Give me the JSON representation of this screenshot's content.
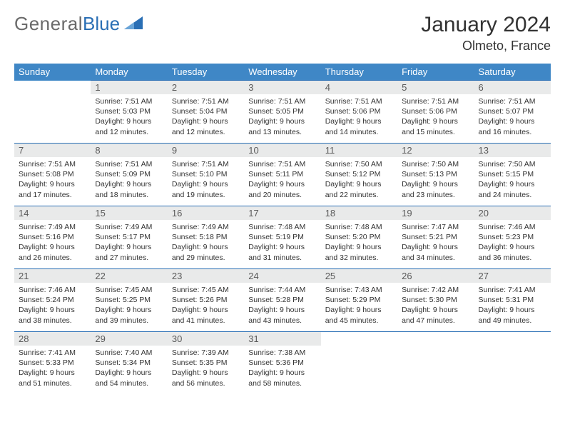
{
  "logo": {
    "part1": "General",
    "part2": "Blue"
  },
  "title": "January 2024",
  "location": "Olmeto, France",
  "weekdays": [
    "Sunday",
    "Monday",
    "Tuesday",
    "Wednesday",
    "Thursday",
    "Friday",
    "Saturday"
  ],
  "colors": {
    "header_bg": "#3f87c6",
    "header_text": "#ffffff",
    "daynum_bg": "#e9eaea",
    "row_border": "#2a6fb5",
    "logo_blue": "#2a6fb5",
    "logo_gray": "#6a6a6a",
    "text": "#333333",
    "page_bg": "#ffffff"
  },
  "fonts": {
    "month_title_pt": 30,
    "location_pt": 18,
    "weekday_pt": 13,
    "daynum_pt": 13,
    "body_pt": 10.5
  },
  "layout": {
    "start_weekday_index": 1,
    "days_in_month": 31,
    "columns": 7,
    "rows": 5
  },
  "days": [
    {
      "n": 1,
      "sunrise": "7:51 AM",
      "sunset": "5:03 PM",
      "daylight": "9 hours and 12 minutes."
    },
    {
      "n": 2,
      "sunrise": "7:51 AM",
      "sunset": "5:04 PM",
      "daylight": "9 hours and 12 minutes."
    },
    {
      "n": 3,
      "sunrise": "7:51 AM",
      "sunset": "5:05 PM",
      "daylight": "9 hours and 13 minutes."
    },
    {
      "n": 4,
      "sunrise": "7:51 AM",
      "sunset": "5:06 PM",
      "daylight": "9 hours and 14 minutes."
    },
    {
      "n": 5,
      "sunrise": "7:51 AM",
      "sunset": "5:06 PM",
      "daylight": "9 hours and 15 minutes."
    },
    {
      "n": 6,
      "sunrise": "7:51 AM",
      "sunset": "5:07 PM",
      "daylight": "9 hours and 16 minutes."
    },
    {
      "n": 7,
      "sunrise": "7:51 AM",
      "sunset": "5:08 PM",
      "daylight": "9 hours and 17 minutes."
    },
    {
      "n": 8,
      "sunrise": "7:51 AM",
      "sunset": "5:09 PM",
      "daylight": "9 hours and 18 minutes."
    },
    {
      "n": 9,
      "sunrise": "7:51 AM",
      "sunset": "5:10 PM",
      "daylight": "9 hours and 19 minutes."
    },
    {
      "n": 10,
      "sunrise": "7:51 AM",
      "sunset": "5:11 PM",
      "daylight": "9 hours and 20 minutes."
    },
    {
      "n": 11,
      "sunrise": "7:50 AM",
      "sunset": "5:12 PM",
      "daylight": "9 hours and 22 minutes."
    },
    {
      "n": 12,
      "sunrise": "7:50 AM",
      "sunset": "5:13 PM",
      "daylight": "9 hours and 23 minutes."
    },
    {
      "n": 13,
      "sunrise": "7:50 AM",
      "sunset": "5:15 PM",
      "daylight": "9 hours and 24 minutes."
    },
    {
      "n": 14,
      "sunrise": "7:49 AM",
      "sunset": "5:16 PM",
      "daylight": "9 hours and 26 minutes."
    },
    {
      "n": 15,
      "sunrise": "7:49 AM",
      "sunset": "5:17 PM",
      "daylight": "9 hours and 27 minutes."
    },
    {
      "n": 16,
      "sunrise": "7:49 AM",
      "sunset": "5:18 PM",
      "daylight": "9 hours and 29 minutes."
    },
    {
      "n": 17,
      "sunrise": "7:48 AM",
      "sunset": "5:19 PM",
      "daylight": "9 hours and 31 minutes."
    },
    {
      "n": 18,
      "sunrise": "7:48 AM",
      "sunset": "5:20 PM",
      "daylight": "9 hours and 32 minutes."
    },
    {
      "n": 19,
      "sunrise": "7:47 AM",
      "sunset": "5:21 PM",
      "daylight": "9 hours and 34 minutes."
    },
    {
      "n": 20,
      "sunrise": "7:46 AM",
      "sunset": "5:23 PM",
      "daylight": "9 hours and 36 minutes."
    },
    {
      "n": 21,
      "sunrise": "7:46 AM",
      "sunset": "5:24 PM",
      "daylight": "9 hours and 38 minutes."
    },
    {
      "n": 22,
      "sunrise": "7:45 AM",
      "sunset": "5:25 PM",
      "daylight": "9 hours and 39 minutes."
    },
    {
      "n": 23,
      "sunrise": "7:45 AM",
      "sunset": "5:26 PM",
      "daylight": "9 hours and 41 minutes."
    },
    {
      "n": 24,
      "sunrise": "7:44 AM",
      "sunset": "5:28 PM",
      "daylight": "9 hours and 43 minutes."
    },
    {
      "n": 25,
      "sunrise": "7:43 AM",
      "sunset": "5:29 PM",
      "daylight": "9 hours and 45 minutes."
    },
    {
      "n": 26,
      "sunrise": "7:42 AM",
      "sunset": "5:30 PM",
      "daylight": "9 hours and 47 minutes."
    },
    {
      "n": 27,
      "sunrise": "7:41 AM",
      "sunset": "5:31 PM",
      "daylight": "9 hours and 49 minutes."
    },
    {
      "n": 28,
      "sunrise": "7:41 AM",
      "sunset": "5:33 PM",
      "daylight": "9 hours and 51 minutes."
    },
    {
      "n": 29,
      "sunrise": "7:40 AM",
      "sunset": "5:34 PM",
      "daylight": "9 hours and 54 minutes."
    },
    {
      "n": 30,
      "sunrise": "7:39 AM",
      "sunset": "5:35 PM",
      "daylight": "9 hours and 56 minutes."
    },
    {
      "n": 31,
      "sunrise": "7:38 AM",
      "sunset": "5:36 PM",
      "daylight": "9 hours and 58 minutes."
    }
  ],
  "labels": {
    "sunrise": "Sunrise:",
    "sunset": "Sunset:",
    "daylight": "Daylight:"
  }
}
